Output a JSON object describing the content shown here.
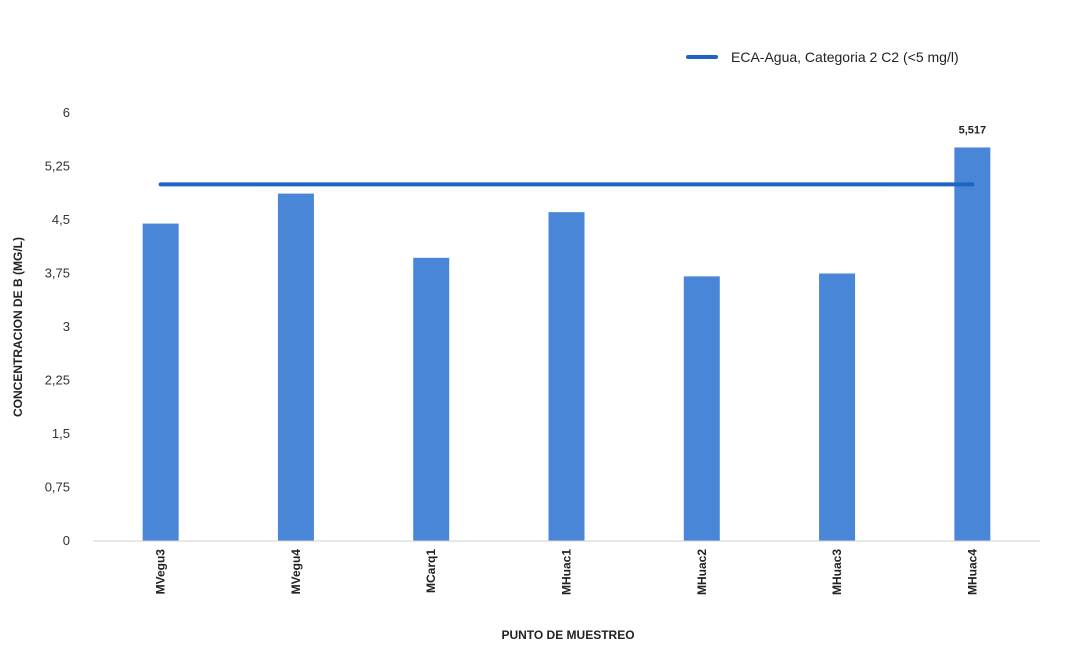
{
  "chart_data": {
    "type": "bar",
    "categories": [
      "MVegu3",
      "MVegu4",
      "MCarq1",
      "MHuac1",
      "MHuac2",
      "MHuac3",
      "MHuac4"
    ],
    "values": [
      4.45,
      4.87,
      3.97,
      4.61,
      3.71,
      3.75,
      5.517
    ],
    "data_labels": [
      "",
      "",
      "",
      "",
      "",
      "",
      "5,517"
    ],
    "reference_line": {
      "name": "ECA-Agua, Categoria 2 C2 (<5 mg/l)",
      "value": 5
    },
    "xlabel": "PUNTO DE MUESTREO",
    "ylabel": "CONCENTRACION DE B (MG/L)",
    "ylim": [
      0,
      6
    ],
    "yticks": [
      0,
      0.75,
      1.5,
      2.25,
      3,
      3.75,
      4.5,
      5.25,
      6
    ],
    "ytick_labels": [
      "0",
      "0,75",
      "1,5",
      "2,25",
      "3",
      "3,75",
      "4,5",
      "5,25",
      "6"
    ],
    "grid": false,
    "legend_position": "top-right",
    "colors": {
      "bar": "#4a86d8",
      "reference_line": "#1e64c0"
    }
  }
}
